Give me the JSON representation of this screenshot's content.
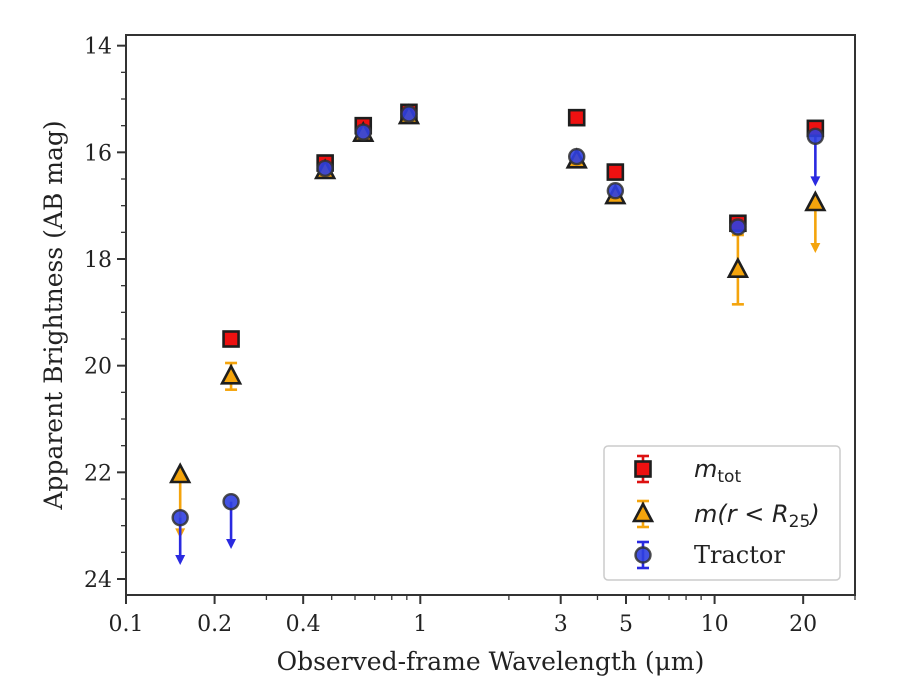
{
  "chart_data": {
    "type": "scatter",
    "title": "",
    "xlabel": "Observed-frame Wavelength (μm)",
    "ylabel": "Apparent Brightness (AB mag)",
    "xscale": "log",
    "xlim": [
      0.1,
      30
    ],
    "ylim": [
      24.3,
      13.8
    ],
    "y_inverted": true,
    "grid": false,
    "legend_position": "lower-right",
    "x_ticks": [
      {
        "value": 0.1,
        "label": "0.1"
      },
      {
        "value": 0.2,
        "label": "0.2"
      },
      {
        "value": 0.4,
        "label": "0.4"
      },
      {
        "value": 1,
        "label": "1"
      },
      {
        "value": 3,
        "label": "3"
      },
      {
        "value": 5,
        "label": "5"
      },
      {
        "value": 10,
        "label": "10"
      },
      {
        "value": 20,
        "label": "20"
      }
    ],
    "y_ticks": [
      {
        "value": 14,
        "label": "14"
      },
      {
        "value": 16,
        "label": "16"
      },
      {
        "value": 18,
        "label": "18"
      },
      {
        "value": 20,
        "label": "20"
      },
      {
        "value": 22,
        "label": "22"
      },
      {
        "value": 24,
        "label": "24"
      }
    ],
    "series": [
      {
        "legend_main": "m",
        "legend_sub": "tot",
        "legend_rest": "",
        "marker": "square",
        "fill": "#ee1111",
        "errcolor": "#dd1111",
        "points": [
          {
            "x": 0.2275,
            "y": 19.5
          },
          {
            "x": 0.475,
            "y": 16.2
          },
          {
            "x": 0.64,
            "y": 15.5
          },
          {
            "x": 0.915,
            "y": 15.25
          },
          {
            "x": 3.4,
            "y": 15.35
          },
          {
            "x": 4.6,
            "y": 16.37
          },
          {
            "x": 12.0,
            "y": 17.33
          },
          {
            "x": 22.0,
            "y": 15.55
          }
        ]
      },
      {
        "legend_main": "m",
        "legend_sub": "",
        "legend_rest": "(r < R",
        "legend_sub2": "25",
        "legend_end": ")",
        "marker": "triangle",
        "fill": "#f4a40c",
        "errcolor": "#f4a40c",
        "points": [
          {
            "x": 0.1528,
            "y": 22.05,
            "upper_limit": true,
            "arrow_to": 23.2
          },
          {
            "x": 0.2275,
            "y": 20.2,
            "err": 0.25
          },
          {
            "x": 0.475,
            "y": 16.35
          },
          {
            "x": 0.64,
            "y": 15.65
          },
          {
            "x": 0.915,
            "y": 15.32
          },
          {
            "x": 3.4,
            "y": 16.15
          },
          {
            "x": 4.6,
            "y": 16.82
          },
          {
            "x": 12.0,
            "y": 18.2,
            "err": 0.65
          },
          {
            "x": 22.0,
            "y": 16.95,
            "upper_limit": true,
            "arrow_to": 17.85
          }
        ]
      },
      {
        "legend_main": "Tractor",
        "legend_sub": "",
        "legend_rest": "",
        "marker": "circle",
        "fill": "#2f3fe0",
        "errcolor": "#2a2ae0",
        "points": [
          {
            "x": 0.1528,
            "y": 22.85,
            "upper_limit": true,
            "arrow_to": 23.7
          },
          {
            "x": 0.2275,
            "y": 22.55,
            "upper_limit": true,
            "arrow_to": 23.4
          },
          {
            "x": 0.475,
            "y": 16.3
          },
          {
            "x": 0.64,
            "y": 15.62
          },
          {
            "x": 0.915,
            "y": 15.28
          },
          {
            "x": 3.4,
            "y": 16.08
          },
          {
            "x": 4.6,
            "y": 16.72
          },
          {
            "x": 12.0,
            "y": 17.4
          },
          {
            "x": 22.0,
            "y": 15.7,
            "upper_limit": true,
            "arrow_to": 16.6
          }
        ]
      }
    ]
  }
}
